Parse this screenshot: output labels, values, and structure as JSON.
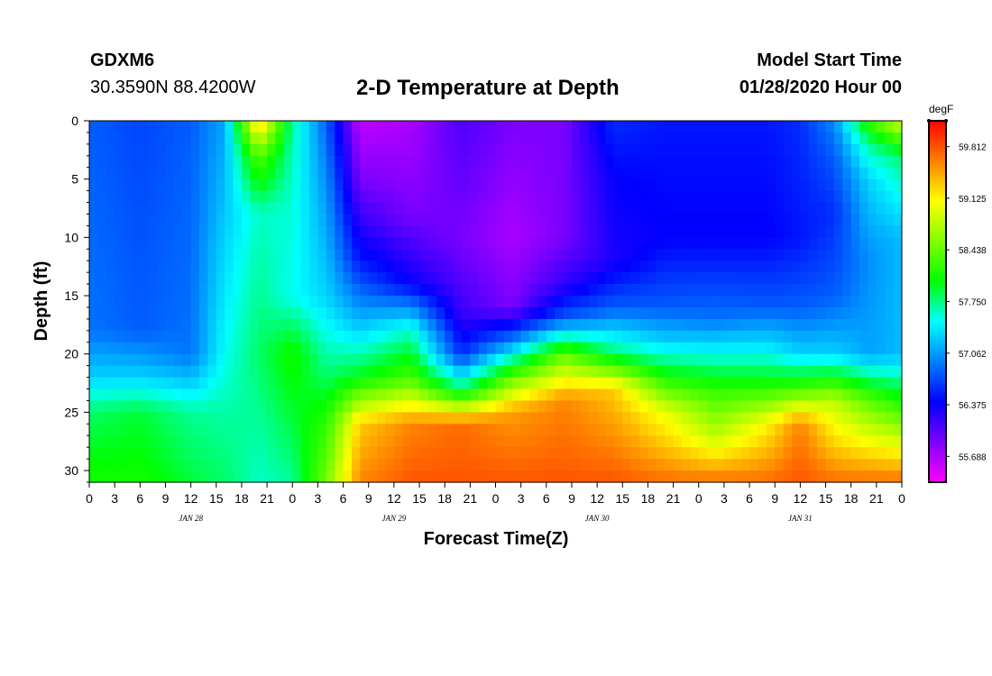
{
  "header": {
    "station_id": "GDXM6",
    "station_coords": "30.3590N 88.4200W",
    "title": "2-D Temperature at Depth",
    "start_label": "Model Start Time",
    "start_value": "01/28/2020 Hour 00"
  },
  "chart_data": {
    "type": "heatmap",
    "title": "2-D Temperature at Depth",
    "xlabel": "Forecast Time(Z)",
    "ylabel": "Depth (ft)",
    "x_tick_labels": [
      "0",
      "3",
      "6",
      "9",
      "12",
      "15",
      "18",
      "21",
      "0",
      "3",
      "6",
      "9",
      "12",
      "15",
      "18",
      "21",
      "0",
      "3",
      "6",
      "9",
      "12",
      "15",
      "18",
      "21",
      "0",
      "3",
      "6",
      "9",
      "12",
      "15",
      "18",
      "21",
      "0"
    ],
    "x_range_hours": [
      0,
      96
    ],
    "day_labels": [
      "JAN 28",
      "JAN 29",
      "JAN 30",
      "JAN 31"
    ],
    "y_ticks": [
      0,
      5,
      10,
      15,
      20,
      25,
      30
    ],
    "y_range": [
      0,
      31
    ],
    "y_inverted": true,
    "colorbar": {
      "units": "degF",
      "labels": [
        "59.812",
        "59.125",
        "58.438",
        "57.750",
        "57.062",
        "56.375",
        "55.688"
      ],
      "range": [
        55.344,
        60.156
      ],
      "colors": [
        "#ff00ff",
        "#8000ff",
        "#0000ff",
        "#0080ff",
        "#00ffff",
        "#00ff00",
        "#80ff00",
        "#ffff00",
        "#ff8000",
        "#ff0000"
      ]
    },
    "grid": false,
    "temperature_profiles": [
      {
        "hour": 0,
        "depth_ft": [
          0,
          18,
          22,
          25,
          31
        ],
        "degF": [
          56.8,
          56.9,
          57.3,
          57.8,
          58.1
        ]
      },
      {
        "hour": 6,
        "depth_ft": [
          0,
          18,
          22,
          25,
          31
        ],
        "degF": [
          56.7,
          56.8,
          57.3,
          57.9,
          58.1
        ]
      },
      {
        "hour": 12,
        "depth_ft": [
          0,
          20,
          22,
          25,
          31
        ],
        "degF": [
          56.8,
          56.9,
          57.2,
          57.7,
          57.9
        ]
      },
      {
        "hour": 16,
        "depth_ft": [
          0,
          10,
          20,
          26,
          31
        ],
        "degF": [
          57.1,
          57.3,
          57.5,
          57.7,
          57.8
        ]
      },
      {
        "hour": 20,
        "depth_ft": [
          0,
          3,
          8,
          20,
          31
        ],
        "degF": [
          59.4,
          58.4,
          57.6,
          57.8,
          57.6
        ]
      },
      {
        "hour": 24,
        "depth_ft": [
          0,
          5,
          15,
          20,
          31
        ],
        "degF": [
          57.7,
          57.6,
          57.5,
          58.1,
          57.7
        ]
      },
      {
        "hour": 28,
        "depth_ft": [
          0,
          5,
          15,
          22,
          26,
          31
        ],
        "degF": [
          56.8,
          57.0,
          57.3,
          57.8,
          58.2,
          58.5
        ]
      },
      {
        "hour": 32,
        "depth_ft": [
          0,
          5,
          12,
          18,
          22,
          26,
          31
        ],
        "degF": [
          55.6,
          55.9,
          56.5,
          57.3,
          58.0,
          59.3,
          59.6
        ]
      },
      {
        "hour": 38,
        "depth_ft": [
          0,
          8,
          14,
          18,
          22,
          26,
          31
        ],
        "degF": [
          55.7,
          55.9,
          56.4,
          57.6,
          58.3,
          59.6,
          59.8
        ]
      },
      {
        "hour": 44,
        "depth_ft": [
          0,
          10,
          17,
          20,
          23,
          26,
          31
        ],
        "degF": [
          56.1,
          55.9,
          56.2,
          56.6,
          57.8,
          59.7,
          59.8
        ]
      },
      {
        "hour": 50,
        "depth_ft": [
          0,
          10,
          16,
          19,
          22,
          25,
          31
        ],
        "degF": [
          55.9,
          55.7,
          55.9,
          57.0,
          58.4,
          59.5,
          59.8
        ]
      },
      {
        "hour": 56,
        "depth_ft": [
          0,
          10,
          14,
          17,
          20,
          24,
          31
        ],
        "degF": [
          55.9,
          55.9,
          56.2,
          56.8,
          58.4,
          59.6,
          59.8
        ]
      },
      {
        "hour": 62,
        "depth_ft": [
          0,
          5,
          12,
          16,
          20,
          23,
          31
        ],
        "degF": [
          56.6,
          56.4,
          56.3,
          56.8,
          57.8,
          59.3,
          59.8
        ]
      },
      {
        "hour": 68,
        "depth_ft": [
          0,
          10,
          16,
          19,
          22,
          25,
          31
        ],
        "degF": [
          56.5,
          56.4,
          56.8,
          57.3,
          58.1,
          59.0,
          59.7
        ]
      },
      {
        "hour": 74,
        "depth_ft": [
          0,
          10,
          17,
          20,
          23,
          27,
          31
        ],
        "degF": [
          56.5,
          56.4,
          56.9,
          57.5,
          58.2,
          58.8,
          59.7
        ]
      },
      {
        "hour": 80,
        "depth_ft": [
          0,
          10,
          16,
          20,
          23,
          26,
          31
        ],
        "degF": [
          56.5,
          56.4,
          56.8,
          57.5,
          58.2,
          59.1,
          59.7
        ]
      },
      {
        "hour": 84,
        "depth_ft": [
          0,
          10,
          16,
          20,
          23,
          26,
          31
        ],
        "degF": [
          56.6,
          56.5,
          56.8,
          57.3,
          58.3,
          59.6,
          59.8
        ]
      },
      {
        "hour": 88,
        "depth_ft": [
          0,
          3,
          8,
          15,
          20,
          24,
          31
        ],
        "degF": [
          57.0,
          56.8,
          56.6,
          56.8,
          57.3,
          58.8,
          59.7
        ]
      },
      {
        "hour": 92,
        "depth_ft": [
          0,
          2,
          5,
          12,
          20,
          24,
          31
        ],
        "degF": [
          58.2,
          57.7,
          57.3,
          57.0,
          57.1,
          58.4,
          59.7
        ]
      },
      {
        "hour": 96,
        "depth_ft": [
          0,
          3,
          10,
          20,
          24,
          31
        ],
        "degF": [
          59.0,
          57.8,
          57.2,
          57.2,
          58.1,
          59.7
        ]
      }
    ]
  }
}
